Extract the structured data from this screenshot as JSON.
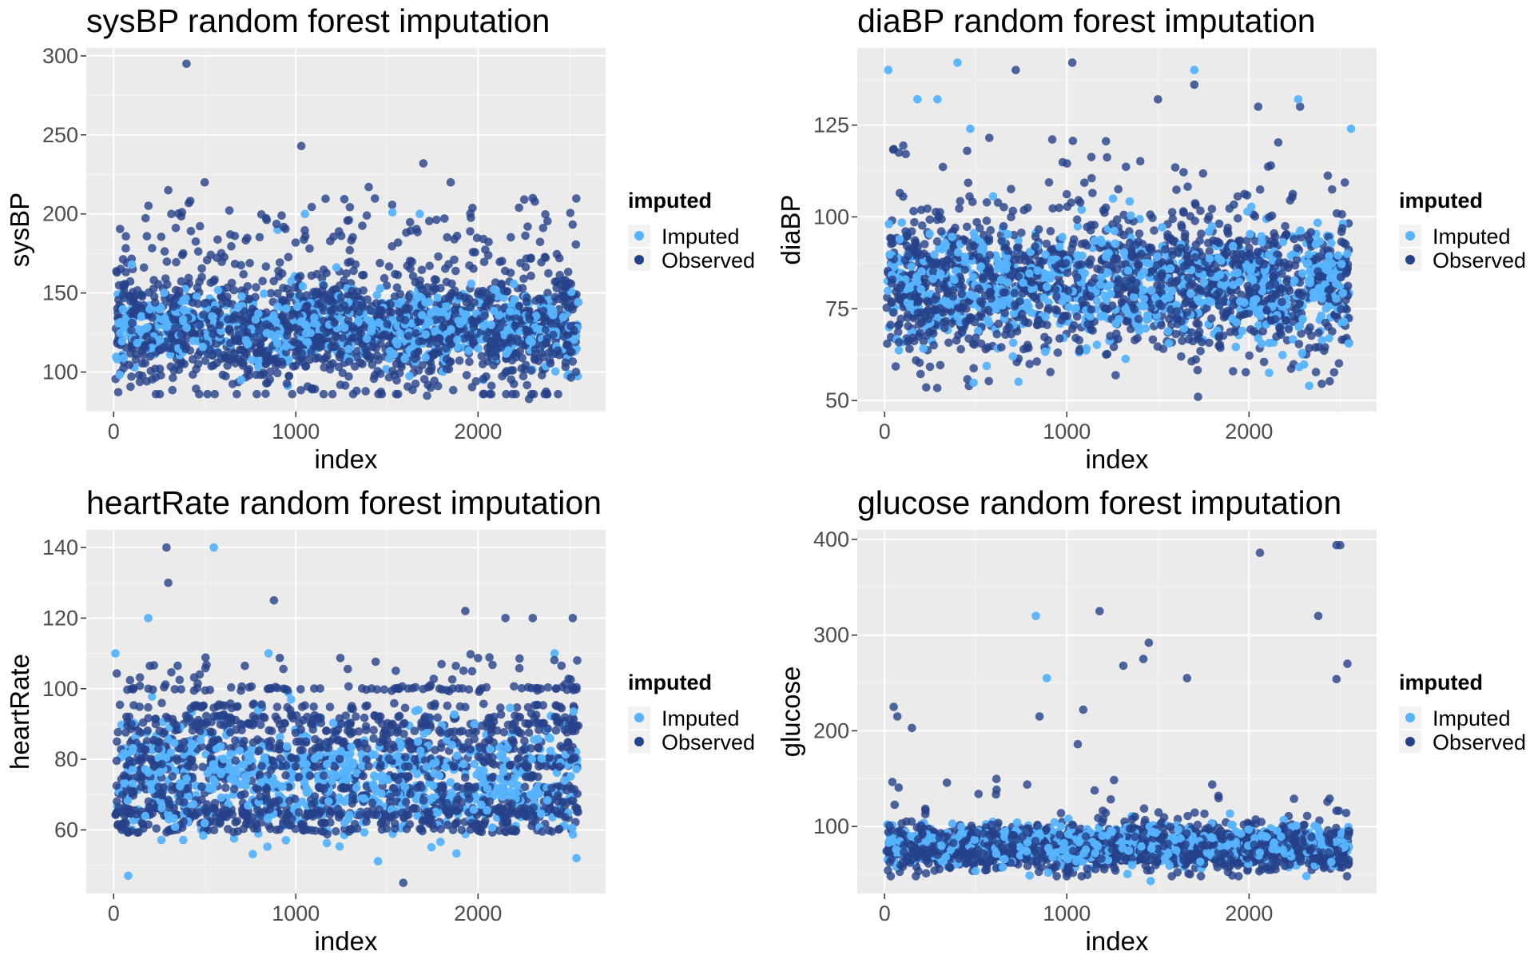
{
  "colors": {
    "imputed": "#56B4FF",
    "observed": "#25418A",
    "panel_bg": "#EBEBEB",
    "grid_major": "#FFFFFF",
    "grid_minor": "#F5F5F5",
    "text": "#000000",
    "tick_text": "#4D4D4D"
  },
  "chart_data": [
    {
      "type": "scatter",
      "title": "sysBP random forest imputation",
      "xlabel": "index",
      "ylabel": "sysBP",
      "xlim": [
        -150,
        2700
      ],
      "ylim": [
        75,
        305
      ],
      "xticks": [
        0,
        1000,
        2000
      ],
      "yticks": [
        100,
        150,
        200,
        250,
        300
      ],
      "xtick_labels": [
        "0",
        "1000",
        "2000"
      ],
      "ytick_labels": [
        "100",
        "150",
        "200",
        "250",
        "300"
      ],
      "grid": true,
      "legend": {
        "title": "imputed",
        "position": "right",
        "entries": [
          "Imputed",
          "Observed"
        ]
      },
      "n_points": 2556,
      "series": [
        {
          "name": "Observed",
          "distribution": "bulk 95-160, sparse upper tail",
          "notable_points": [
            [
              400,
              295
            ],
            [
              1030,
              243
            ],
            [
              1700,
              232
            ],
            [
              500,
              220
            ],
            [
              1850,
              220
            ],
            [
              1400,
              217
            ],
            [
              300,
              215
            ],
            [
              2300,
              210
            ],
            [
              1720,
              85
            ],
            [
              2280,
              83
            ]
          ]
        },
        {
          "name": "Imputed",
          "distribution": "bulk 105-150",
          "notable_points": [
            [
              1050,
              200
            ],
            [
              1530,
              201
            ],
            [
              1680,
              200
            ],
            [
              900,
              190
            ],
            [
              100,
              168
            ],
            [
              700,
              95
            ],
            [
              2030,
              95
            ]
          ]
        }
      ]
    },
    {
      "type": "scatter",
      "title": "diaBP random forest imputation",
      "xlabel": "index",
      "ylabel": "diaBP",
      "xlim": [
        -150,
        2700
      ],
      "ylim": [
        47,
        146
      ],
      "xticks": [
        0,
        1000,
        2000
      ],
      "yticks": [
        50,
        75,
        100,
        125
      ],
      "xtick_labels": [
        "0",
        "1000",
        "2000"
      ],
      "ytick_labels": [
        "50",
        "75",
        "100",
        "125"
      ],
      "grid": true,
      "legend": {
        "title": "imputed",
        "position": "right",
        "entries": [
          "Imputed",
          "Observed"
        ]
      },
      "n_points": 2556,
      "series": [
        {
          "name": "Observed",
          "distribution": "bulk 60-100",
          "notable_points": [
            [
              1030,
              142
            ],
            [
              720,
              140
            ],
            [
              1700,
              136
            ],
            [
              1500,
              132
            ],
            [
              2280,
              130
            ],
            [
              2050,
              130
            ],
            [
              1720,
              51
            ]
          ]
        },
        {
          "name": "Imputed",
          "distribution": "bulk 65-95",
          "notable_points": [
            [
              20,
              140
            ],
            [
              400,
              142
            ],
            [
              1700,
              140
            ],
            [
              180,
              132
            ],
            [
              290,
              132
            ],
            [
              2270,
              132
            ],
            [
              470,
              124
            ],
            [
              2560,
              124
            ],
            [
              2330,
              54
            ]
          ]
        }
      ]
    },
    {
      "type": "scatter",
      "title": "heartRate random forest imputation",
      "xlabel": "index",
      "ylabel": "heartRate",
      "xlim": [
        -150,
        2700
      ],
      "ylim": [
        42,
        145
      ],
      "xticks": [
        0,
        1000,
        2000
      ],
      "yticks": [
        60,
        80,
        100,
        120,
        140
      ],
      "xtick_labels": [
        "0",
        "1000",
        "2000"
      ],
      "ytick_labels": [
        "60",
        "80",
        "100",
        "120",
        "140"
      ],
      "grid": true,
      "legend": {
        "title": "imputed",
        "position": "right",
        "entries": [
          "Imputed",
          "Observed"
        ]
      },
      "n_points": 2556,
      "series": [
        {
          "name": "Observed",
          "distribution": "banded at common rates 60-100",
          "notable_points": [
            [
              290,
              140
            ],
            [
              300,
              130
            ],
            [
              880,
              125
            ],
            [
              1930,
              122
            ],
            [
              2150,
              120
            ],
            [
              2300,
              120
            ],
            [
              2520,
              120
            ],
            [
              1590,
              45
            ]
          ]
        },
        {
          "name": "Imputed",
          "distribution": "bulk 60-90",
          "notable_points": [
            [
              550,
              140
            ],
            [
              190,
              120
            ],
            [
              10,
              110
            ],
            [
              850,
              110
            ],
            [
              2420,
              110
            ],
            [
              80,
              47
            ],
            [
              2540,
              52
            ]
          ]
        }
      ]
    },
    {
      "type": "scatter",
      "title": "glucose random forest imputation",
      "xlabel": "index",
      "ylabel": "glucose",
      "xlim": [
        -150,
        2700
      ],
      "ylim": [
        30,
        410
      ],
      "xticks": [
        0,
        1000,
        2000
      ],
      "yticks": [
        100,
        200,
        300,
        400
      ],
      "xtick_labels": [
        "0",
        "1000",
        "2000"
      ],
      "ytick_labels": [
        "100",
        "200",
        "300",
        "400"
      ],
      "grid": true,
      "legend": {
        "title": "imputed",
        "position": "right",
        "entries": [
          "Imputed",
          "Observed"
        ]
      },
      "n_points": 2556,
      "series": [
        {
          "name": "Observed",
          "distribution": "bulk 55-110, sparse high outliers",
          "notable_points": [
            [
              2480,
              394
            ],
            [
              2500,
              394
            ],
            [
              2060,
              386
            ],
            [
              1180,
              325
            ],
            [
              2380,
              320
            ],
            [
              1450,
              292
            ],
            [
              1420,
              275
            ],
            [
              2540,
              270
            ],
            [
              1310,
              268
            ],
            [
              1660,
              255
            ],
            [
              2480,
              254
            ],
            [
              50,
              225
            ],
            [
              70,
              215
            ],
            [
              150,
              203
            ],
            [
              1090,
              222
            ],
            [
              1060,
              186
            ],
            [
              850,
              215
            ]
          ]
        },
        {
          "name": "Imputed",
          "distribution": "bulk 60-100",
          "notable_points": [
            [
              830,
              320
            ],
            [
              890,
              255
            ],
            [
              1460,
              43
            ]
          ]
        }
      ]
    }
  ]
}
